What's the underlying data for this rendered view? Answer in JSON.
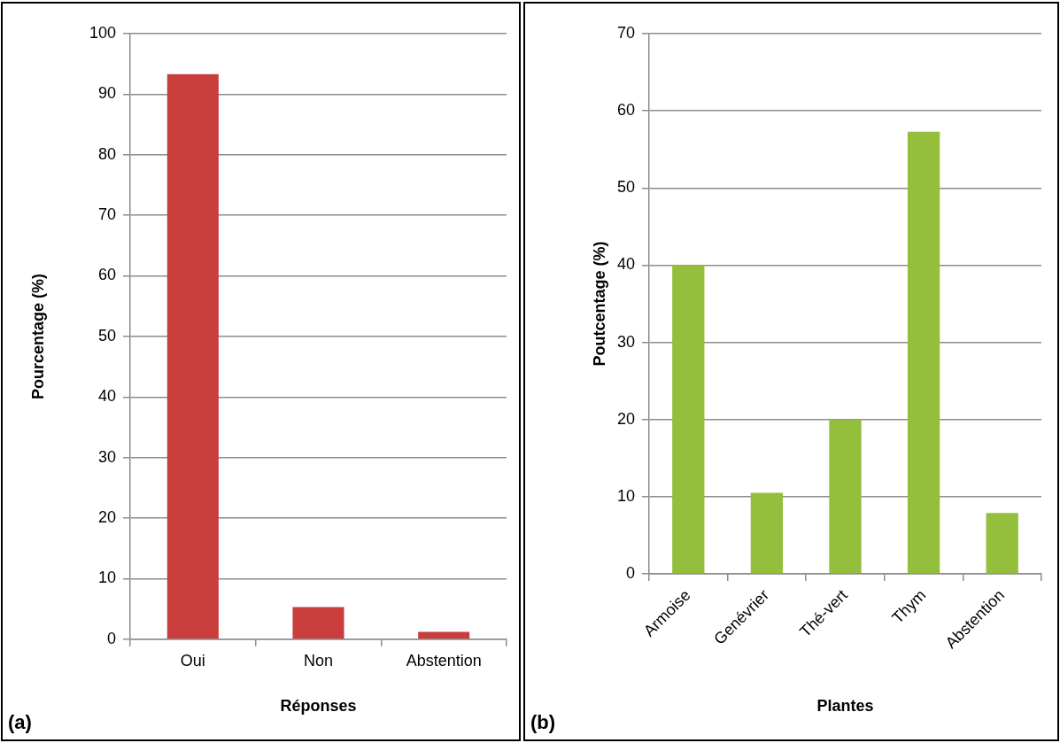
{
  "chart_data": [
    {
      "type": "bar",
      "categories": [
        "Oui",
        "Non",
        "Abstention"
      ],
      "values": [
        93.3,
        5.3,
        1.2
      ],
      "color": "#c93d3d",
      "xlabel": "Réponses",
      "ylabel": "Pourcentage (%)",
      "ylim": [
        0,
        100
      ],
      "yticks": [
        0,
        10,
        20,
        30,
        40,
        50,
        60,
        70,
        80,
        90,
        100
      ],
      "grid": "y",
      "legend": false,
      "annotations": [
        "(a)"
      ]
    },
    {
      "type": "bar",
      "categories": [
        "Armoise",
        "Genévrier",
        "Thé-vert",
        "Thym",
        "Abstention"
      ],
      "values": [
        40,
        10.5,
        20,
        57.3,
        7.9
      ],
      "color": "#93bf3c",
      "xlabel": "Plantes",
      "ylabel": "Poutcentage (%)",
      "ylim": [
        0,
        70
      ],
      "yticks": [
        0,
        10,
        20,
        30,
        40,
        50,
        60,
        70
      ],
      "grid": "y",
      "legend": false,
      "annotations": [
        "(b)"
      ]
    }
  ]
}
